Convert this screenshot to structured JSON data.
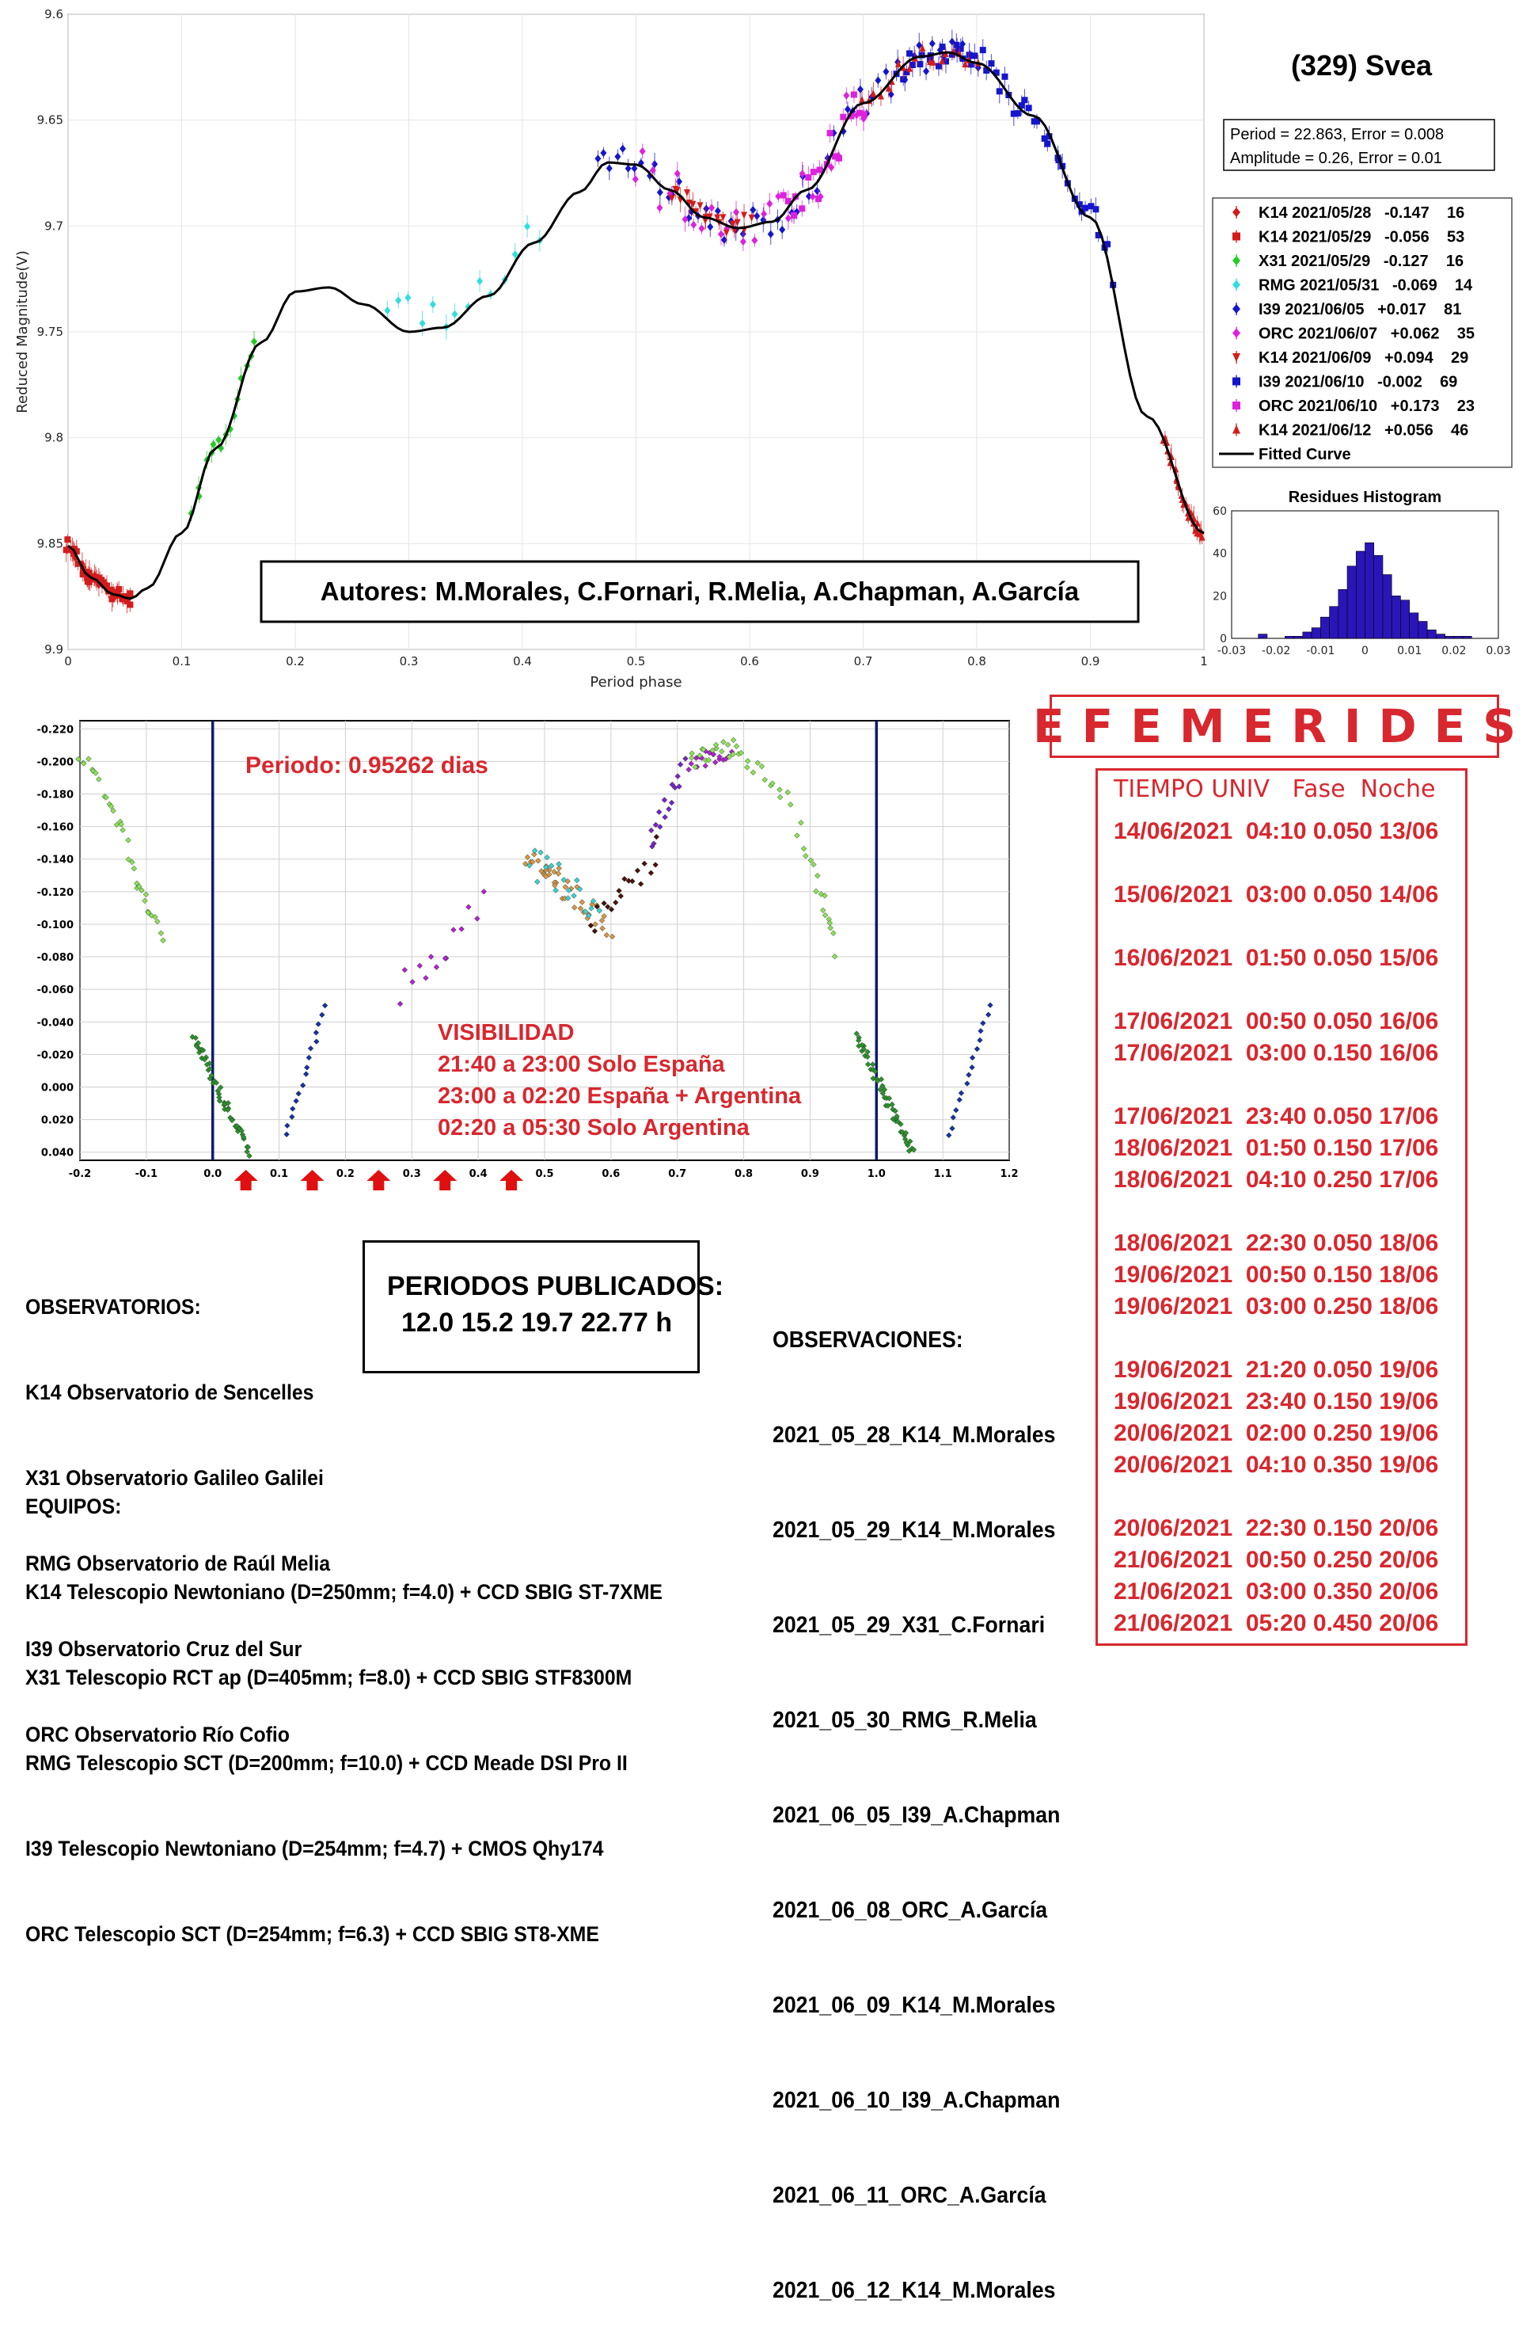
{
  "chart_data": [
    {
      "type": "scatter",
      "title": "(329) Svea",
      "xlabel": "Period phase",
      "ylabel": "Reduced Magnitude(V)",
      "xlim": [
        0,
        1
      ],
      "ylim": [
        9.9,
        9.6
      ],
      "x_ticks": [
        "0",
        "0.1",
        "0.2",
        "0.3",
        "0.4",
        "0.5",
        "0.6",
        "0.7",
        "0.8",
        "0.9",
        "1"
      ],
      "y_ticks": [
        "9.6",
        "9.65",
        "9.7",
        "9.75",
        "9.8",
        "9.85",
        "9.9"
      ],
      "grid": true,
      "fit_info": [
        "Period =  22.863, Error = 0.008",
        "Amplitude = 0.26, Error = 0.01"
      ],
      "legend": [
        {
          "label": "K14 2021/05/28   -0.147    16",
          "color": "#d41c1c",
          "marker": "diamond"
        },
        {
          "label": "K14 2021/05/29   -0.056    53",
          "color": "#d41c1c",
          "marker": "square"
        },
        {
          "label": "X31 2021/05/29   -0.127    16",
          "color": "#22cc22",
          "marker": "diamond"
        },
        {
          "label": "RMG 2021/05/31   -0.069    14",
          "color": "#33dddd",
          "marker": "diamond"
        },
        {
          "label": "I39 2021/06/05   +0.017    81",
          "color": "#1515cc",
          "marker": "diamond"
        },
        {
          "label": "ORC 2021/06/07   +0.062    35",
          "color": "#dd22dd",
          "marker": "diamond"
        },
        {
          "label": "K14 2021/06/09   +0.094    29",
          "color": "#d41c1c",
          "marker": "triangle-down"
        },
        {
          "label": "I39 2021/06/10   -0.002    69",
          "color": "#1515cc",
          "marker": "square"
        },
        {
          "label": "ORC 2021/06/10   +0.173    23",
          "color": "#dd22dd",
          "marker": "square"
        },
        {
          "label": "K14 2021/06/12   +0.056    46",
          "color": "#d41c1c",
          "marker": "triangle-up"
        },
        {
          "label": "Fitted Curve",
          "color": "#000000",
          "marker": "line"
        }
      ],
      "fitted_curve": {
        "x": [
          0,
          0.02,
          0.04,
          0.055,
          0.07,
          0.1,
          0.13,
          0.17,
          0.2,
          0.23,
          0.26,
          0.3,
          0.33,
          0.37,
          0.41,
          0.45,
          0.475,
          0.5,
          0.53,
          0.56,
          0.59,
          0.62,
          0.65,
          0.7,
          0.75,
          0.775,
          0.8,
          0.85,
          0.9,
          0.95,
          1.0
        ],
        "y": [
          9.851,
          9.866,
          9.874,
          9.876,
          9.871,
          9.845,
          9.805,
          9.755,
          9.731,
          9.729,
          9.737,
          9.75,
          9.748,
          9.733,
          9.708,
          9.684,
          9.67,
          9.671,
          9.683,
          9.696,
          9.701,
          9.698,
          9.683,
          9.642,
          9.62,
          9.618,
          9.623,
          9.648,
          9.696,
          9.79,
          9.845
        ]
      },
      "histogram": {
        "title": "Residues Histogram",
        "xlim": [
          -0.03,
          0.03
        ],
        "ylim": [
          0,
          60
        ],
        "x_ticks": [
          "-0.03",
          "-0.02",
          "-0.01",
          "0",
          "0.01",
          "0.02",
          "0.03"
        ],
        "y_ticks": [
          "0",
          "20",
          "40",
          "60"
        ],
        "bin_width": 0.002,
        "bin_starts": [
          -0.024,
          -0.022,
          -0.02,
          -0.018,
          -0.016,
          -0.014,
          -0.012,
          -0.01,
          -0.008,
          -0.006,
          -0.004,
          -0.002,
          0.0,
          0.002,
          0.004,
          0.006,
          0.008,
          0.01,
          0.012,
          0.014,
          0.016,
          0.018,
          0.02,
          0.022
        ],
        "counts": [
          2,
          0,
          0,
          1,
          1,
          3,
          5,
          10,
          15,
          23,
          34,
          41,
          45,
          39,
          30,
          20,
          18,
          12,
          8,
          4,
          2,
          1,
          1,
          1
        ]
      }
    },
    {
      "type": "scatter",
      "title": "Periodo: 0.95262 dias",
      "xlim": [
        -0.2,
        1.2
      ],
      "ylim": [
        0.045,
        -0.225
      ],
      "x_ticks": [
        "-0.2",
        "-0.1",
        "0.0",
        "0.1",
        "0.2",
        "0.3",
        "0.4",
        "0.5",
        "0.6",
        "0.7",
        "0.8",
        "0.9",
        "1.0",
        "1.1",
        "1.2"
      ],
      "y_ticks": [
        "-0.220",
        "-0.200",
        "-0.180",
        "-0.160",
        "-0.140",
        "-0.120",
        "-0.100",
        "-0.080",
        "-0.060",
        "-0.040",
        "-0.020",
        "0.000",
        "0.020",
        "0.040"
      ],
      "grid": true,
      "vertical_lines_x": [
        0.0,
        1.0
      ],
      "arrows_x": [
        0.05,
        0.15,
        0.25,
        0.35,
        0.45
      ],
      "visibility_title": "VISIBILIDAD",
      "visibility_lines": [
        "21:40 a 23:00 Solo España",
        "23:00 a 02:20 España + Argentina",
        "02:20 a 05:30 Solo Argentina"
      ]
    }
  ],
  "authors": "Autores: M.Morales, C.Fornari, R.Melia, A.Chapman, A.García",
  "ephemerides": {
    "title": "EFEMERIDES",
    "header": "TIEMPO UNIV   Fase  Noche",
    "rows": [
      "14/06/2021  04:10 0.050 13/06",
      "15/06/2021  03:00 0.050 14/06",
      "16/06/2021  01:50 0.050 15/06",
      "17/06/2021  00:50 0.050 16/06",
      "17/06/2021  03:00 0.150 16/06",
      "17/06/2021  23:40 0.050 17/06",
      "18/06/2021  01:50 0.150 17/06",
      "18/06/2021  04:10 0.250 17/06",
      "18/06/2021  22:30 0.050 18/06",
      "19/06/2021  00:50 0.150 18/06",
      "19/06/2021  03:00 0.250 18/06",
      "19/06/2021  21:20 0.050 19/06",
      "19/06/2021  23:40 0.150 19/06",
      "20/06/2021  02:00 0.250 19/06",
      "20/06/2021  04:10 0.350 19/06",
      "20/06/2021  22:30 0.150 20/06",
      "21/06/2021  00:50 0.250 20/06",
      "21/06/2021  03:00 0.350 20/06",
      "21/06/2021  05:20 0.450 20/06"
    ]
  },
  "observatories": {
    "title": "OBSERVATORIOS:",
    "items": [
      "K14 Observatorio de Sencelles",
      "X31 Observatorio Galileo Galilei",
      "RMG Observatorio de Raúl Melia",
      "I39 Observatorio Cruz del Sur",
      "ORC Observatorio Río Cofio"
    ]
  },
  "equipment": {
    "title": "EQUIPOS:",
    "items": [
      "K14 Telescopio Newtoniano (D=250mm; f=4.0) + CCD SBIG ST-7XME",
      "X31 Telescopio RCT ap (D=405mm; f=8.0) + CCD SBIG STF8300M",
      "RMG Telescopio SCT (D=200mm; f=10.0) + CCD Meade DSI Pro II",
      "I39 Telescopio Newtoniano (D=254mm; f=4.7) + CMOS Qhy174",
      "ORC Telescopio SCT (D=254mm; f=6.3) + CCD SBIG ST8-XME"
    ]
  },
  "published_periods": {
    "title": "PERIODOS PUBLICADOS:",
    "values": "12.0 15.2 19.7 22.77 h"
  },
  "observations": {
    "title": "OBSERVACIONES:",
    "items": [
      "2021_05_28_K14_M.Morales",
      "2021_05_29_K14_M.Morales",
      "2021_05_29_X31_C.Fornari",
      "2021_05_30_RMG_R.Melia",
      "2021_06_05_I39_A.Chapman",
      "2021_06_08_ORC_A.García",
      "2021_06_09_K14_M.Morales",
      "2021_06_10_I39_A.Chapman",
      "2021_06_11_ORC_A.García",
      "2021_06_12_K14_M.Morales"
    ]
  },
  "colors": {
    "red": "#d8272e",
    "navy": "#0c1a6e",
    "hist_fill": "#2a16b8"
  }
}
